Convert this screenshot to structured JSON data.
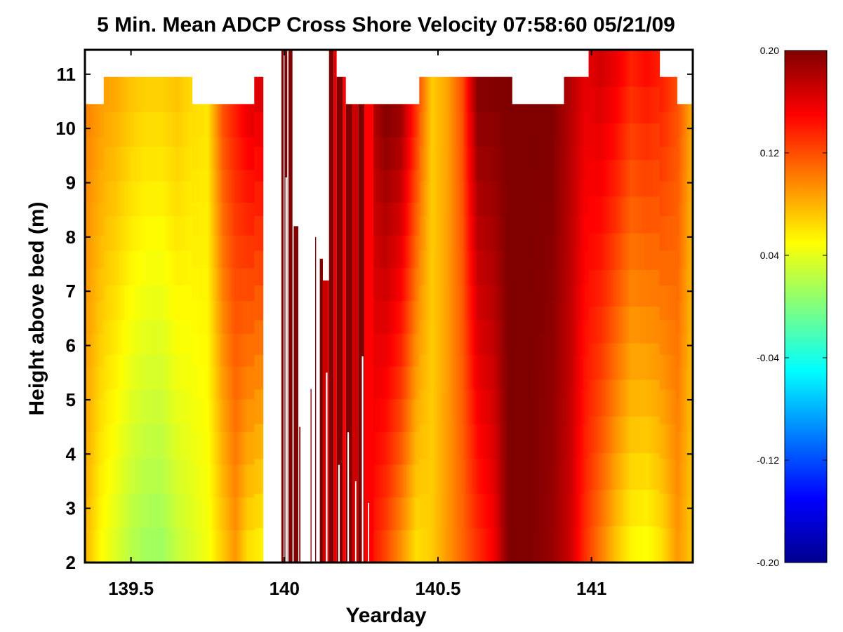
{
  "chart_data": {
    "type": "heatmap",
    "title": "5 Min. Mean ADCP Cross Shore Velocity 07:58:60 05/21/09",
    "xlabel": "Yearday",
    "ylabel": "Height above bed (m)",
    "xlim": [
      139.35,
      141.33
    ],
    "ylim": [
      2,
      11.45
    ],
    "xticks": [
      139.5,
      140,
      140.5,
      141
    ],
    "xtick_labels": [
      "139.5",
      "140",
      "140.5",
      "141"
    ],
    "yticks": [
      2,
      3,
      4,
      5,
      6,
      7,
      8,
      9,
      10,
      11
    ],
    "ytick_labels": [
      "2",
      "3",
      "4",
      "5",
      "6",
      "7",
      "8",
      "9",
      "10",
      "11"
    ],
    "colorbar": {
      "clim": [
        -0.2,
        0.2
      ],
      "ticks": [
        0.2,
        0.12,
        0.04,
        -0.04,
        -0.12,
        -0.2
      ],
      "tick_labels": [
        "0.20",
        "0.12",
        "0.04",
        "-0.04",
        "-0.12",
        "-0.20"
      ],
      "colormap": "jet"
    },
    "profile_tops": [
      {
        "x0": 139.35,
        "x1": 139.41,
        "top": 10.45
      },
      {
        "x0": 139.41,
        "x1": 139.7,
        "top": 10.95
      },
      {
        "x0": 139.7,
        "x1": 139.9,
        "top": 10.45
      },
      {
        "x0": 139.9,
        "x1": 139.99,
        "top": 10.95
      },
      {
        "x0": 140.16,
        "x1": 140.22,
        "top": 10.95
      },
      {
        "x0": 140.22,
        "x1": 140.44,
        "top": 10.45
      },
      {
        "x0": 140.44,
        "x1": 140.74,
        "top": 10.95
      },
      {
        "x0": 140.74,
        "x1": 140.91,
        "top": 10.45
      },
      {
        "x0": 140.91,
        "x1": 140.99,
        "top": 10.95
      },
      {
        "x0": 140.99,
        "x1": 141.22,
        "top": 11.45
      },
      {
        "x0": 141.22,
        "x1": 141.28,
        "top": 10.95
      },
      {
        "x0": 141.28,
        "x1": 141.33,
        "top": 10.45
      }
    ],
    "columns": [
      {
        "x": 139.35,
        "bottom": 0.08,
        "top": 0.1
      },
      {
        "x": 139.4,
        "bottom": 0.05,
        "top": 0.09
      },
      {
        "x": 139.45,
        "bottom": 0.035,
        "top": 0.085
      },
      {
        "x": 139.5,
        "bottom": 0.02,
        "top": 0.075
      },
      {
        "x": 139.55,
        "bottom": 0.012,
        "top": 0.07
      },
      {
        "x": 139.6,
        "bottom": 0.01,
        "top": 0.07
      },
      {
        "x": 139.65,
        "bottom": 0.025,
        "top": 0.075
      },
      {
        "x": 139.7,
        "bottom": 0.035,
        "top": 0.065
      },
      {
        "x": 139.75,
        "bottom": 0.045,
        "top": 0.06
      },
      {
        "x": 139.8,
        "bottom": 0.07,
        "top": 0.12
      },
      {
        "x": 139.84,
        "bottom": 0.09,
        "top": 0.14
      },
      {
        "x": 139.88,
        "bottom": 0.06,
        "top": 0.16
      },
      {
        "x": 139.93,
        "bottom": 0.05,
        "top": 0.17
      },
      {
        "x": 140.29,
        "bottom": 0.14,
        "top": 0.18
      },
      {
        "x": 140.33,
        "bottom": 0.12,
        "top": 0.2
      },
      {
        "x": 140.38,
        "bottom": 0.09,
        "top": 0.19
      },
      {
        "x": 140.43,
        "bottom": 0.06,
        "top": 0.13
      },
      {
        "x": 140.48,
        "bottom": 0.07,
        "top": 0.07
      },
      {
        "x": 140.53,
        "bottom": 0.09,
        "top": 0.085
      },
      {
        "x": 140.58,
        "bottom": 0.11,
        "top": 0.12
      },
      {
        "x": 140.63,
        "bottom": 0.13,
        "top": 0.2
      },
      {
        "x": 140.68,
        "bottom": 0.15,
        "top": 0.2
      },
      {
        "x": 140.73,
        "bottom": 0.2,
        "top": 0.2
      },
      {
        "x": 140.8,
        "bottom": 0.2,
        "top": 0.2
      },
      {
        "x": 140.87,
        "bottom": 0.19,
        "top": 0.2
      },
      {
        "x": 140.93,
        "bottom": 0.17,
        "top": 0.18
      },
      {
        "x": 140.98,
        "bottom": 0.13,
        "top": 0.16
      },
      {
        "x": 141.03,
        "bottom": 0.1,
        "top": 0.17
      },
      {
        "x": 141.08,
        "bottom": 0.07,
        "top": 0.16
      },
      {
        "x": 141.13,
        "bottom": 0.05,
        "top": 0.14
      },
      {
        "x": 141.18,
        "bottom": 0.045,
        "top": 0.15
      },
      {
        "x": 141.23,
        "bottom": 0.06,
        "top": 0.14
      },
      {
        "x": 141.28,
        "bottom": 0.09,
        "top": 0.12
      },
      {
        "x": 141.33,
        "bottom": 0.07,
        "top": 0.08
      }
    ],
    "gap_region": {
      "x0": 139.99,
      "x1": 140.29,
      "value": 0.2,
      "bars": [
        {
          "x0": 139.99,
          "x1": 139.997,
          "top": 11.45,
          "value": 0.2
        },
        {
          "x0": 140.0,
          "x1": 140.009,
          "top": 11.45,
          "value": 0.2
        },
        {
          "x0": 140.013,
          "x1": 140.026,
          "top": 11.45,
          "value": 0.2
        },
        {
          "x0": 140.03,
          "x1": 140.045,
          "top": 8.2,
          "value": 0.2
        },
        {
          "x0": 140.048,
          "x1": 140.052,
          "top": 4.5,
          "value": 0.2
        },
        {
          "x0": 140.085,
          "x1": 140.088,
          "top": 5.2,
          "value": 0.2
        },
        {
          "x0": 140.1,
          "x1": 140.103,
          "top": 8.0,
          "value": 0.2
        },
        {
          "x0": 140.115,
          "x1": 140.125,
          "top": 7.6,
          "value": 0.2
        },
        {
          "x0": 140.125,
          "x1": 140.145,
          "top": 7.2,
          "value": 0.17
        },
        {
          "x0": 140.145,
          "x1": 140.16,
          "top": 11.45,
          "value": 0.2
        },
        {
          "x0": 140.16,
          "x1": 140.17,
          "top": 11.45,
          "value": 0.16
        },
        {
          "x0": 140.17,
          "x1": 140.19,
          "top": 10.95,
          "value": 0.2
        },
        {
          "x0": 140.19,
          "x1": 140.2,
          "top": 10.95,
          "value": 0.15
        },
        {
          "x0": 140.2,
          "x1": 140.22,
          "top": 10.45,
          "value": 0.2
        },
        {
          "x0": 140.22,
          "x1": 140.24,
          "top": 10.45,
          "value": 0.17
        },
        {
          "x0": 140.24,
          "x1": 140.26,
          "top": 10.45,
          "value": 0.2
        },
        {
          "x0": 140.26,
          "x1": 140.29,
          "top": 10.45,
          "value": 0.15
        }
      ],
      "holes": [
        {
          "x0": 140.003,
          "x1": 140.008,
          "y0": 2,
          "y1": 9.1
        },
        {
          "x0": 140.135,
          "x1": 140.14,
          "y0": 2,
          "y1": 5.5
        },
        {
          "x0": 140.175,
          "x1": 140.18,
          "y0": 2,
          "y1": 3.8
        },
        {
          "x0": 140.205,
          "x1": 140.21,
          "y0": 2,
          "y1": 4.4
        },
        {
          "x0": 140.23,
          "x1": 140.234,
          "y0": 2,
          "y1": 3.5
        },
        {
          "x0": 140.252,
          "x1": 140.257,
          "y0": 2,
          "y1": 5.8
        },
        {
          "x0": 140.272,
          "x1": 140.276,
          "y0": 2,
          "y1": 3.1
        }
      ]
    }
  }
}
